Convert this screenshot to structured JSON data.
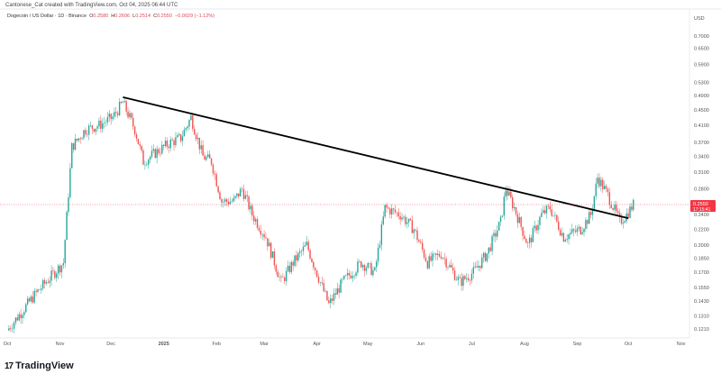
{
  "header": {
    "credit": "Cantonese_Cat created with TradingView.com, Oct 04, 2025 06:44 UTC",
    "symbol": "Dogecoin / US Dollar · 1D · Binance",
    "o_label": "O",
    "o": "0.2580",
    "h_label": "H",
    "h": "0.2606",
    "l_label": "L",
    "l": "0.2514",
    "c_label": "C",
    "c": "0.2550",
    "change": "−0.0029 (−1.12%)"
  },
  "footer": {
    "brand": "TradingView"
  },
  "colors": {
    "up": "#26a69a",
    "down": "#ef5350",
    "price_label": "#f23645",
    "trendline": "#000000"
  },
  "chart_data": {
    "type": "candlestick",
    "title": "Dogecoin / US Dollar · 1D · Binance",
    "currency": "USD",
    "y_scale": "log",
    "ylim": [
      0.112,
      0.78
    ],
    "y_ticks": [
      "0.7000",
      "0.6500",
      "0.5900",
      "0.5300",
      "0.4900",
      "0.4500",
      "0.4100",
      "0.3700",
      "0.3400",
      "0.3100",
      "0.2800",
      "0.2400",
      "0.2200",
      "0.2000",
      "0.1850",
      "0.1700",
      "0.1550",
      "0.1430",
      "0.1310",
      "0.1210"
    ],
    "x_ticks": [
      {
        "day": 0,
        "label": "Oct"
      },
      {
        "day": 31,
        "label": "Nov"
      },
      {
        "day": 61,
        "label": "Dec"
      },
      {
        "day": 92,
        "label": "2025"
      },
      {
        "day": 123,
        "label": "Feb"
      },
      {
        "day": 151,
        "label": "Mar"
      },
      {
        "day": 182,
        "label": "Apr"
      },
      {
        "day": 212,
        "label": "May"
      },
      {
        "day": 243,
        "label": "Jun"
      },
      {
        "day": 273,
        "label": "Jul"
      },
      {
        "day": 304,
        "label": "Aug"
      },
      {
        "day": 335,
        "label": "Sep"
      },
      {
        "day": 365,
        "label": "Oct"
      },
      {
        "day": 396,
        "label": "Nov"
      }
    ],
    "close_path_keyframes": [
      [
        0,
        0.12
      ],
      [
        17,
        0.15
      ],
      [
        33,
        0.18
      ],
      [
        38,
        0.36
      ],
      [
        46,
        0.4
      ],
      [
        54,
        0.41
      ],
      [
        62,
        0.43
      ],
      [
        68,
        0.47
      ],
      [
        75,
        0.4
      ],
      [
        80,
        0.33
      ],
      [
        88,
        0.35
      ],
      [
        96,
        0.37
      ],
      [
        102,
        0.38
      ],
      [
        108,
        0.43
      ],
      [
        115,
        0.34
      ],
      [
        120,
        0.33
      ],
      [
        126,
        0.26
      ],
      [
        133,
        0.26
      ],
      [
        138,
        0.28
      ],
      [
        144,
        0.24
      ],
      [
        152,
        0.21
      ],
      [
        161,
        0.16
      ],
      [
        168,
        0.18
      ],
      [
        176,
        0.2
      ],
      [
        184,
        0.16
      ],
      [
        189,
        0.14
      ],
      [
        197,
        0.16
      ],
      [
        208,
        0.18
      ],
      [
        216,
        0.17
      ],
      [
        222,
        0.25
      ],
      [
        231,
        0.24
      ],
      [
        239,
        0.22
      ],
      [
        247,
        0.18
      ],
      [
        255,
        0.19
      ],
      [
        266,
        0.16
      ],
      [
        274,
        0.17
      ],
      [
        282,
        0.19
      ],
      [
        290,
        0.23
      ],
      [
        293,
        0.28
      ],
      [
        298,
        0.25
      ],
      [
        306,
        0.2
      ],
      [
        314,
        0.24
      ],
      [
        319,
        0.25
      ],
      [
        327,
        0.21
      ],
      [
        337,
        0.22
      ],
      [
        343,
        0.24
      ],
      [
        347,
        0.3
      ],
      [
        353,
        0.27
      ],
      [
        360,
        0.23
      ],
      [
        364,
        0.24
      ],
      [
        368,
        0.255
      ]
    ],
    "trendline": {
      "from": [
        68,
        0.485
      ],
      "to": [
        365,
        0.235
      ]
    },
    "last_price": "0.2550",
    "countdown": "17:15:41"
  }
}
